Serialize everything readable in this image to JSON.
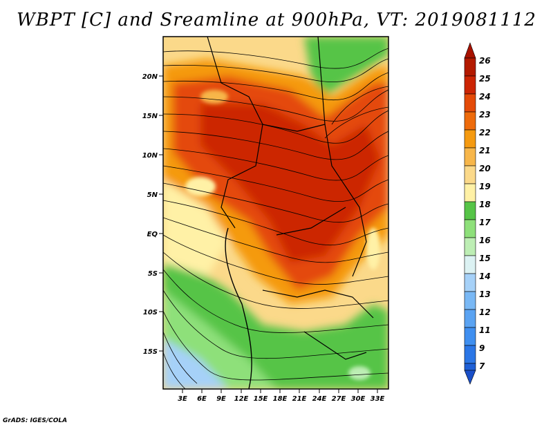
{
  "title": "WBPT [C] and Sreamline at 900hPa, VT: 2019081112",
  "credit": "GrADS: IGES/COLA",
  "map": {
    "lat_labels": [
      "20N",
      "15N",
      "10N",
      "5N",
      "EQ",
      "5S",
      "10S",
      "15S"
    ],
    "lon_labels": [
      "3E",
      "6E",
      "9E",
      "12E",
      "15E",
      "18E",
      "21E",
      "24E",
      "27E",
      "30E",
      "33E"
    ]
  },
  "colorbar": {
    "levels": [
      "7",
      "9",
      "11",
      "12",
      "13",
      "14",
      "15",
      "16",
      "17",
      "18",
      "19",
      "20",
      "21",
      "22",
      "23",
      "24",
      "25",
      "26"
    ],
    "colors": [
      "#1e5fd6",
      "#2b76e6",
      "#3f8ff0",
      "#5aa3f2",
      "#79b8f5",
      "#a6d1f8",
      "#dcf2f3",
      "#bdeeb4",
      "#8ee07a",
      "#56c447",
      "#fff1a6",
      "#fbd98a",
      "#f7b64a",
      "#f59a10",
      "#ee6b0b",
      "#e44a08",
      "#cc2504",
      "#b31a00"
    ],
    "bottom_tip_color": "#1a4fc8",
    "top_tip_color": "#a81200"
  }
}
